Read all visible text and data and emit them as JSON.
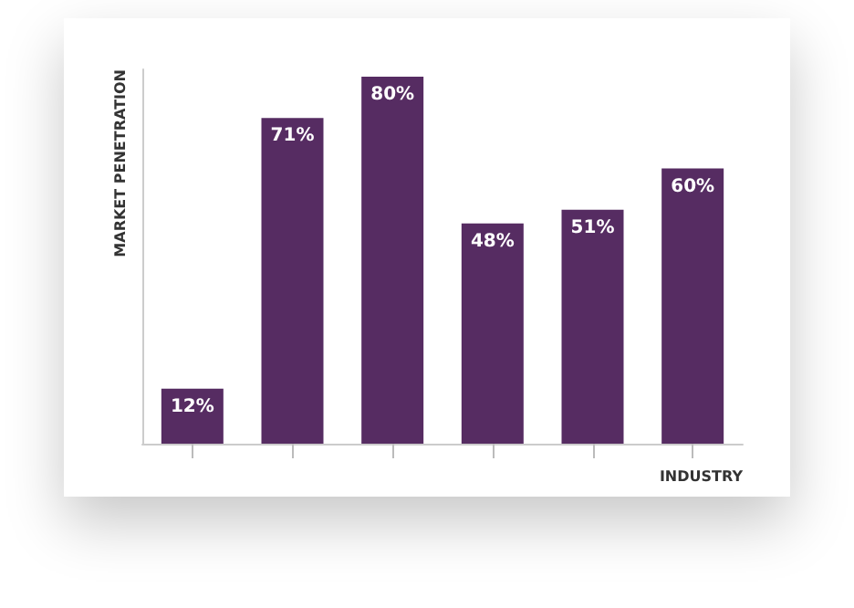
{
  "chart_data": {
    "type": "bar",
    "xlabel": "INDUSTRY",
    "ylabel": "MARKET PENETRATION",
    "categories": [
      null,
      null,
      null,
      null,
      null,
      null
    ],
    "values": [
      12,
      71,
      80,
      48,
      51,
      60
    ],
    "value_labels": [
      "12%",
      "71%",
      "80%",
      "48%",
      "51%",
      "60%"
    ],
    "color": "#562c62"
  }
}
